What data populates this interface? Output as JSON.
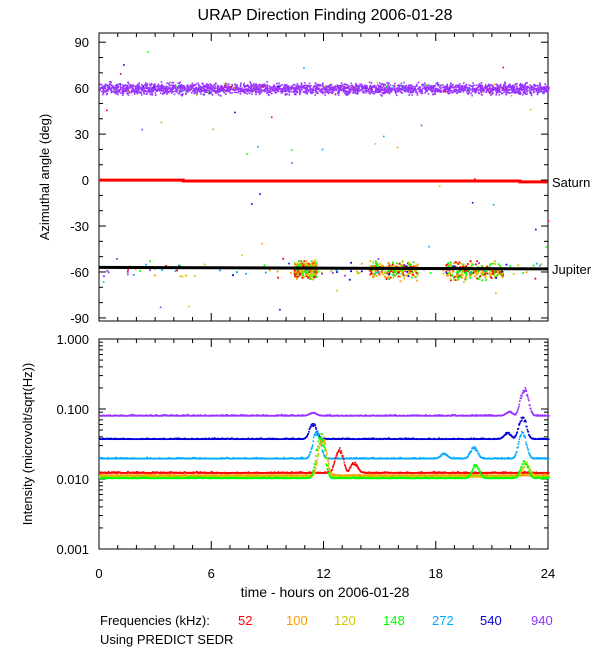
{
  "chart_data": [
    {
      "type": "scatter",
      "panel": "direction",
      "title": "URAP Direction Finding  2006-01-28",
      "xlabel": "",
      "ylabel": "Azimuthal angle (deg)",
      "xlim": [
        0,
        24
      ],
      "ylim": [
        -92,
        96
      ],
      "yticks": [
        90,
        60,
        30,
        0,
        -30,
        -60,
        -90
      ],
      "ytick_labels": [
        "90",
        "60",
        "30",
        "0",
        "-30",
        "-60",
        "-90"
      ],
      "reference_lines": [
        {
          "name": "Saturn",
          "color": "#ff0000",
          "x": [
            0,
            4.5,
            4.5,
            22.5,
            22.5,
            24
          ],
          "y": [
            0,
            0,
            -0.6,
            -0.6,
            -1.2,
            -1.2
          ]
        },
        {
          "name": "Jupiter",
          "color": "#000000",
          "x": [
            0,
            24
          ],
          "y": [
            -57,
            -58
          ]
        }
      ],
      "series": [
        {
          "name": "main band (940 kHz)",
          "color": "#9933ff",
          "x_range": [
            0,
            24
          ],
          "y_center": 60,
          "y_spread": 5
        },
        {
          "name": "Jupiter cluster 10.5-11.5 h",
          "color": "mixed",
          "x_range": [
            10.4,
            11.6
          ],
          "y_center": -58,
          "y_spread": 8
        },
        {
          "name": "Jupiter cluster 14.5-17 h",
          "color": "mixed",
          "x_range": [
            14.4,
            17.0
          ],
          "y_center": -58,
          "y_spread": 8
        },
        {
          "name": "Jupiter cluster 18.5-21.5 h",
          "color": "mixed",
          "x_range": [
            18.5,
            21.6
          ],
          "y_center": -59,
          "y_spread": 8
        }
      ]
    },
    {
      "type": "line",
      "panel": "intensity",
      "title": "",
      "xlabel": "time - hours on 2006-01-28",
      "ylabel": "Intensity (microvolt/sqrt(Hz))",
      "xlim": [
        0,
        24
      ],
      "ylim": [
        0.001,
        1.0
      ],
      "yscale": "log",
      "yticks": [
        1.0,
        0.1,
        0.01,
        0.001
      ],
      "ytick_labels": [
        "1.000",
        "0.100",
        "0.010",
        "0.001"
      ],
      "xticks": [
        0,
        6,
        12,
        18,
        24
      ],
      "xtick_labels": [
        "0",
        "6",
        "12",
        "18",
        "24"
      ],
      "series": [
        {
          "name": "940",
          "color": "#9933ff",
          "baseline": 0.082,
          "spikes": [
            [
              11.4,
              0.092
            ],
            [
              21.9,
              0.095
            ],
            [
              22.7,
              0.22
            ]
          ]
        },
        {
          "name": "540",
          "color": "#0000dd",
          "baseline": 0.038,
          "spikes": [
            [
              11.4,
              0.065
            ],
            [
              21.8,
              0.048
            ],
            [
              22.6,
              0.085
            ]
          ]
        },
        {
          "name": "272",
          "color": "#00aaff",
          "baseline": 0.02,
          "spikes": [
            [
              11.6,
              0.052
            ],
            [
              18.4,
              0.024
            ],
            [
              20.0,
              0.03
            ],
            [
              22.6,
              0.05
            ]
          ]
        },
        {
          "name": "52",
          "color": "#ff0000",
          "baseline": 0.0125,
          "spikes": [
            [
              12.8,
              0.03
            ],
            [
              13.6,
              0.018
            ]
          ]
        },
        {
          "name": "100",
          "color": "#ff9900",
          "baseline": 0.0115,
          "spikes": [
            [
              11.9,
              0.045
            ]
          ]
        },
        {
          "name": "120",
          "color": "#cccc00",
          "baseline": 0.011,
          "spikes": [
            [
              11.9,
              0.04
            ],
            [
              22.8,
              0.018
            ]
          ]
        },
        {
          "name": "148",
          "color": "#00ff00",
          "baseline": 0.0105,
          "spikes": [
            [
              11.8,
              0.048
            ],
            [
              20.1,
              0.017
            ],
            [
              22.7,
              0.019
            ]
          ]
        }
      ]
    }
  ],
  "legend": {
    "prefix": "Frequencies (kHz):",
    "items": [
      {
        "label": "52",
        "color": "#ff0000"
      },
      {
        "label": "100",
        "color": "#ff9900"
      },
      {
        "label": "120",
        "color": "#cccc00"
      },
      {
        "label": "148",
        "color": "#00ff00"
      },
      {
        "label": "272",
        "color": "#00aaff"
      },
      {
        "label": "540",
        "color": "#0000dd"
      },
      {
        "label": "940",
        "color": "#9933ff"
      }
    ]
  },
  "source_note": "Using PREDICT SEDR"
}
